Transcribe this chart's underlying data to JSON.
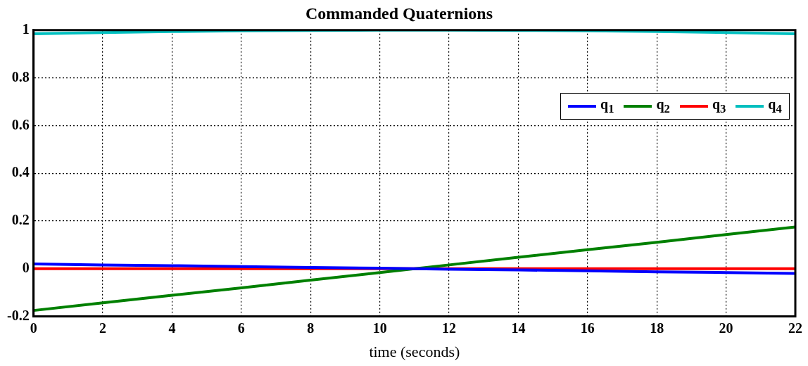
{
  "chart_data": {
    "type": "line",
    "title": "Commanded Quaternions",
    "xlabel": "time (seconds)",
    "x": [
      0,
      2,
      4,
      6,
      8,
      10,
      12,
      14,
      16,
      18,
      20,
      22
    ],
    "series": [
      {
        "name": "q$_{1}$",
        "color": "#0000ff",
        "values": [
          0.02,
          0.016,
          0.013,
          0.009,
          0.005,
          0.002,
          -0.002,
          -0.005,
          -0.009,
          -0.013,
          -0.016,
          -0.02
        ]
      },
      {
        "name": "q$_{2}$",
        "color": "#008000",
        "values": [
          -0.175,
          -0.143,
          -0.111,
          -0.08,
          -0.048,
          -0.016,
          0.016,
          0.048,
          0.08,
          0.111,
          0.143,
          0.175
        ]
      },
      {
        "name": "q$_{3}$",
        "color": "#ff0000",
        "values": [
          0,
          0,
          0,
          0,
          0,
          0,
          0,
          0,
          0,
          0,
          0,
          0
        ]
      },
      {
        "name": "q$_{4}$",
        "color": "#00bfbf",
        "values": [
          0.985,
          0.99,
          0.994,
          0.997,
          0.999,
          1,
          1,
          0.999,
          0.997,
          0.994,
          0.99,
          0.985
        ]
      }
    ],
    "xlim": [
      0,
      22
    ],
    "xticks": [
      0,
      2,
      4,
      6,
      8,
      10,
      12,
      14,
      16,
      18,
      20,
      22
    ],
    "ylim": [
      -0.2,
      1
    ],
    "yticks": [
      -0.2,
      0,
      0.2,
      0.4,
      0.6,
      0.8,
      1
    ],
    "grid": true,
    "legend": "right",
    "marker": "none",
    "line_style": "solid"
  }
}
